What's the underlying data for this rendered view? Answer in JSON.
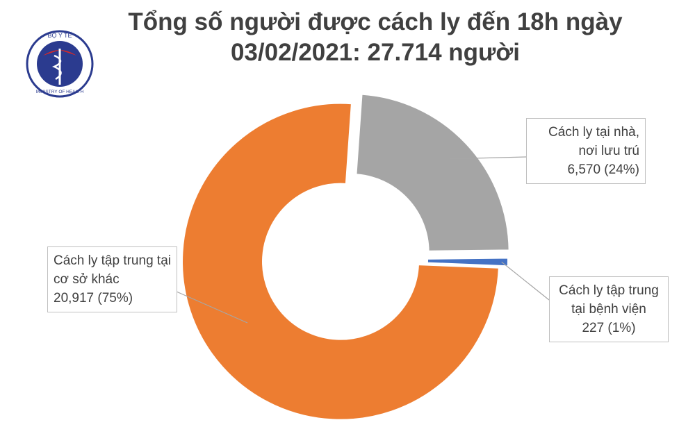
{
  "logo": {
    "top_text": "BỘ Y TẾ",
    "bottom_text": "MINISTRY OF HEALTH"
  },
  "chart_data": {
    "type": "donut",
    "title": "Tổng số người được cách ly đến 18h ngày 03/02/2021: 27.714 người",
    "categories": [
      "Cách ly tại nhà, nơi lưu trú",
      "Cách ly tập trung tại bệnh viện",
      "Cách ly tập trung tại cơ sở khác"
    ],
    "values": [
      6570,
      227,
      20917
    ],
    "value_labels": [
      "6,570 (24%)",
      "227 (1%)",
      "20,917 (75%)"
    ],
    "colors": [
      "#a5a5a5",
      "#4472c4",
      "#ed7d31"
    ]
  }
}
